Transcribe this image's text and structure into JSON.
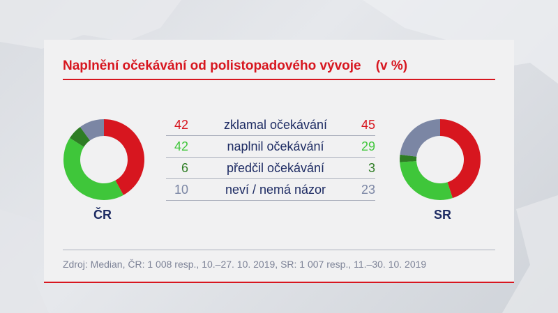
{
  "title": "Naplnění očekávání od polistopadového vývoje    (v %)",
  "source": "Zdroj: Median, ČR: 1 008 resp., 10.–27. 10. 2019, SR: 1 007 resp., 11.–30. 10. 2019",
  "colors": {
    "red": "#d7161f",
    "light_green": "#3fc63a",
    "dark_green": "#2e7d24",
    "gray_blue": "#7b86a4",
    "navy": "#1d2b63"
  },
  "chart_data": [
    {
      "type": "pie",
      "donut": true,
      "title": "ČR",
      "categories": [
        "zklamal očekávání",
        "naplnil očekávání",
        "předčil očekávání",
        "neví / nemá názor"
      ],
      "values": [
        42,
        42,
        6,
        10
      ],
      "colors": [
        "#d7161f",
        "#3fc63a",
        "#2e7d24",
        "#7b86a4"
      ]
    },
    {
      "type": "pie",
      "donut": true,
      "title": "SR",
      "categories": [
        "zklamal očekávání",
        "naplnil očekávání",
        "předčil očekávání",
        "neví / nemá názor"
      ],
      "values": [
        45,
        29,
        3,
        23
      ],
      "colors": [
        "#d7161f",
        "#3fc63a",
        "#2e7d24",
        "#7b86a4"
      ]
    }
  ],
  "table": {
    "rows": [
      {
        "cr": "42",
        "label": "zklamal očekávání",
        "sr": "45",
        "color": "#d7161f"
      },
      {
        "cr": "42",
        "label": "naplnil očekávání",
        "sr": "29",
        "color": "#3fc63a"
      },
      {
        "cr": "6",
        "label": "předčil očekávání",
        "sr": "3",
        "color": "#2e7d24"
      },
      {
        "cr": "10",
        "label": "neví / nemá názor",
        "sr": "23",
        "color": "#7b86a4"
      }
    ]
  }
}
